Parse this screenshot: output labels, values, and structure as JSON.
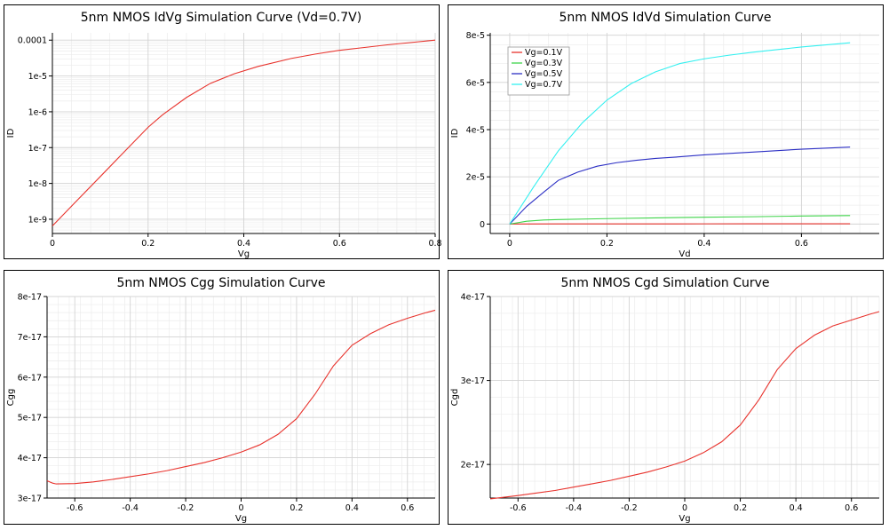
{
  "colors": {
    "red": "#e8332d",
    "green": "#3fd44a",
    "blue": "#2c2fc4",
    "cyan": "#34f0f0",
    "grid_major": "#d4d4d4",
    "grid_minor": "#ececec"
  },
  "chart_data": [
    {
      "id": "idvg",
      "type": "line",
      "title": "5nm NMOS IdVg Simulation Curve (Vd=0.7V)",
      "xlabel": "Vg",
      "ylabel": "ID",
      "yscale": "log",
      "xlim": [
        0,
        0.8
      ],
      "ylim": [
        4e-10,
        0.00016
      ],
      "xticks": [
        0,
        0.2,
        0.4,
        0.6,
        0.8
      ],
      "xtick_labels": [
        "0",
        "0.2",
        "0.4",
        "0.6",
        "0.8"
      ],
      "yticks": [
        1e-09,
        1e-08,
        1e-07,
        1e-06,
        1e-05,
        0.0001
      ],
      "ytick_labels": [
        "1e-9",
        "1e-8",
        "1e-7",
        "1e-6",
        "1e-5",
        "0.0001"
      ],
      "grid": true,
      "series": [
        {
          "color": "red",
          "x": [
            0,
            0.05,
            0.1,
            0.15,
            0.2,
            0.23,
            0.28,
            0.33,
            0.38,
            0.43,
            0.5,
            0.55,
            0.6,
            0.65,
            0.7,
            0.75,
            0.8
          ],
          "y": [
            6.5e-10,
            3.2e-09,
            1.55e-08,
            7.6e-08,
            3.7e-07,
            8.2e-07,
            2.5e-06,
            6.2e-06,
            1.15e-05,
            1.85e-05,
            3.1e-05,
            4.1e-05,
            5.2e-05,
            6.2e-05,
            7.4e-05,
            8.6e-05,
            0.0001
          ]
        }
      ]
    },
    {
      "id": "idvd",
      "type": "line",
      "title": "5nm NMOS IdVd Simulation Curve",
      "xlabel": "Vd",
      "ylabel": "ID",
      "xlim": [
        -0.04,
        0.76
      ],
      "ylim": [
        -4e-06,
        8.1e-05
      ],
      "xticks": [
        0,
        0.2,
        0.4,
        0.6
      ],
      "xtick_labels": [
        "0",
        "0.2",
        "0.4",
        "0.6"
      ],
      "yticks": [
        0,
        2e-05,
        4e-05,
        6e-05,
        8e-05
      ],
      "ytick_labels": [
        "0",
        "2e-5",
        "4e-5",
        "6e-5",
        "8e-5"
      ],
      "grid": true,
      "legend": "top-left",
      "series": [
        {
          "name": "Vg=0.1V",
          "color": "red",
          "x": [
            0,
            0.1,
            0.2,
            0.3,
            0.4,
            0.5,
            0.6,
            0.7
          ],
          "y": [
            0,
            5e-08,
            7e-08,
            8e-08,
            9e-08,
            9.5e-08,
            1e-07,
            1e-07
          ]
        },
        {
          "name": "Vg=0.3V",
          "color": "green",
          "x": [
            0,
            0.035,
            0.07,
            0.1,
            0.2,
            0.3,
            0.4,
            0.5,
            0.6,
            0.7
          ],
          "y": [
            0,
            1.2e-06,
            1.7e-06,
            1.9e-06,
            2.3e-06,
            2.6e-06,
            2.9e-06,
            3.1e-06,
            3.4e-06,
            3.6e-06
          ]
        },
        {
          "name": "Vg=0.5V",
          "color": "blue",
          "x": [
            0,
            0.035,
            0.07,
            0.1,
            0.14,
            0.18,
            0.22,
            0.26,
            0.3,
            0.35,
            0.4,
            0.5,
            0.6,
            0.7
          ],
          "y": [
            0,
            7.5e-06,
            1.35e-05,
            1.85e-05,
            2.2e-05,
            2.45e-05,
            2.6e-05,
            2.7e-05,
            2.78e-05,
            2.85e-05,
            2.93e-05,
            3.05e-05,
            3.17e-05,
            3.26e-05
          ]
        },
        {
          "name": "Vg=0.7V",
          "color": "cyan",
          "x": [
            0,
            0.05,
            0.1,
            0.15,
            0.2,
            0.25,
            0.3,
            0.35,
            0.4,
            0.45,
            0.5,
            0.6,
            0.7
          ],
          "y": [
            0,
            1.6e-05,
            3.1e-05,
            4.3e-05,
            5.25e-05,
            5.95e-05,
            6.45e-05,
            6.8e-05,
            7e-05,
            7.15e-05,
            7.28e-05,
            7.5e-05,
            7.68e-05
          ]
        }
      ]
    },
    {
      "id": "cgg",
      "type": "line",
      "title": "5nm NMOS Cgg Simulation Curve",
      "xlabel": "Vg",
      "ylabel": "Cgg",
      "xlim": [
        -0.7,
        0.7
      ],
      "ylim": [
        3e-17,
        8e-17
      ],
      "xticks": [
        -0.6,
        -0.4,
        -0.2,
        0,
        0.2,
        0.4,
        0.6
      ],
      "xtick_labels": [
        "-0.6",
        "-0.4",
        "-0.2",
        "0",
        "0.2",
        "0.4",
        "0.6"
      ],
      "yticks": [
        3e-17,
        4e-17,
        5e-17,
        6e-17,
        7e-17,
        8e-17
      ],
      "ytick_labels": [
        "3e-17",
        "4e-17",
        "5e-17",
        "6e-17",
        "7e-17",
        "8e-17"
      ],
      "grid": true,
      "series": [
        {
          "color": "red",
          "x": [
            -0.7,
            -0.68,
            -0.667,
            -0.6,
            -0.533,
            -0.467,
            -0.4,
            -0.333,
            -0.267,
            -0.2,
            -0.133,
            -0.067,
            0,
            0.067,
            0.133,
            0.2,
            0.267,
            0.333,
            0.4,
            0.467,
            0.533,
            0.6,
            0.667,
            0.7
          ],
          "y": [
            3.43e-17,
            3.37e-17,
            3.35e-17,
            3.36e-17,
            3.4e-17,
            3.46e-17,
            3.53e-17,
            3.6e-17,
            3.68e-17,
            3.78e-17,
            3.88e-17,
            4e-17,
            4.14e-17,
            4.32e-17,
            4.58e-17,
            4.97e-17,
            5.58e-17,
            6.28e-17,
            6.79e-17,
            7.08e-17,
            7.3e-17,
            7.46e-17,
            7.6e-17,
            7.66e-17
          ]
        }
      ]
    },
    {
      "id": "cgd",
      "type": "line",
      "title": "5nm NMOS Cgd Simulation Curve",
      "xlabel": "Vg",
      "ylabel": "Cgd",
      "xlim": [
        -0.7,
        0.7
      ],
      "ylim": [
        1.6e-17,
        4e-17
      ],
      "xticks": [
        -0.6,
        -0.4,
        -0.2,
        0,
        0.2,
        0.4,
        0.6
      ],
      "xtick_labels": [
        "-0.6",
        "-0.4",
        "-0.2",
        "0",
        "0.2",
        "0.4",
        "0.6"
      ],
      "yticks": [
        2e-17,
        3e-17,
        4e-17
      ],
      "ytick_labels": [
        "2e-17",
        "3e-17",
        "4e-17"
      ],
      "grid": true,
      "series": [
        {
          "color": "red",
          "x": [
            -0.7,
            -0.6,
            -0.533,
            -0.467,
            -0.4,
            -0.333,
            -0.267,
            -0.2,
            -0.133,
            -0.067,
            0,
            0.067,
            0.133,
            0.2,
            0.267,
            0.333,
            0.4,
            0.467,
            0.533,
            0.6,
            0.667,
            0.7
          ],
          "y": [
            1.59e-17,
            1.63e-17,
            1.66e-17,
            1.69e-17,
            1.73e-17,
            1.77e-17,
            1.81e-17,
            1.86e-17,
            1.91e-17,
            1.97e-17,
            2.04e-17,
            2.14e-17,
            2.27e-17,
            2.47e-17,
            2.77e-17,
            3.13e-17,
            3.38e-17,
            3.54e-17,
            3.65e-17,
            3.72e-17,
            3.79e-17,
            3.82e-17
          ]
        }
      ]
    }
  ]
}
